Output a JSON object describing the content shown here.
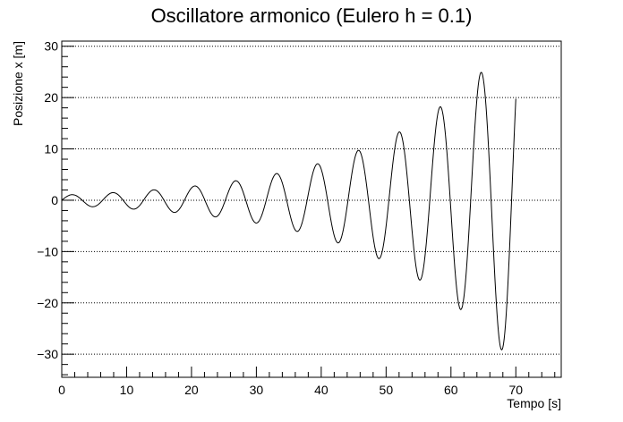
{
  "chart_data": {
    "type": "line",
    "title": "Oscillatore armonico (Eulero h = 0.1)",
    "xlabel": "Tempo [s]",
    "ylabel": "Posizione x [m]",
    "xlim": [
      0,
      77
    ],
    "ylim": [
      -34.5,
      31
    ],
    "x_ticks": [
      0,
      10,
      20,
      30,
      40,
      50,
      60,
      70
    ],
    "x_tick_labels": [
      "0",
      "10",
      "20",
      "30",
      "40",
      "50",
      "60",
      "70"
    ],
    "y_ticks": [
      -30,
      -20,
      -10,
      0,
      10,
      20,
      30
    ],
    "y_tick_labels": [
      "−30",
      "−20",
      "−10",
      "0",
      "10",
      "20",
      "30"
    ],
    "grid": "horizontal-dotted",
    "line_color": "#000000",
    "series": [
      {
        "method": "euler",
        "h": 0.1,
        "x0": 0,
        "v0": 1,
        "t_start": 0,
        "t_end": 70
      }
    ]
  }
}
